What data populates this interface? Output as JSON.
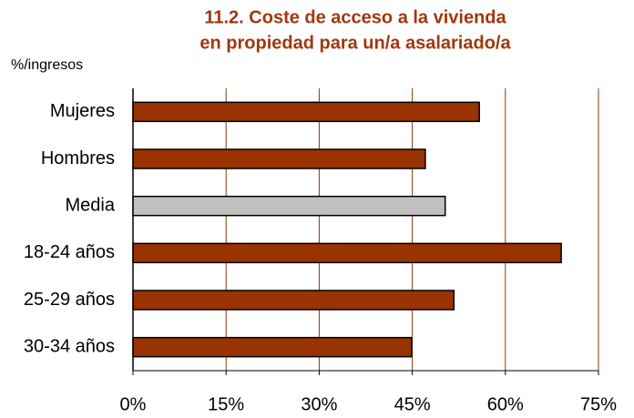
{
  "chart_data": {
    "type": "hbar",
    "title": [
      "11.2. Coste de acceso a la vivienda",
      "en propiedad para un/a asalariado/a"
    ],
    "y_label": "%/ingresos",
    "categories": [
      "Mujeres",
      "Hombres",
      "Media",
      "18-24 años",
      "25-29 años",
      "30-34 años"
    ],
    "values": [
      55.8,
      47.1,
      50.3,
      69.0,
      51.7,
      44.9
    ],
    "colors": [
      "#993300",
      "#993300",
      "#c0c0c0",
      "#993300",
      "#993300",
      "#993300"
    ],
    "xlim": [
      0,
      75
    ],
    "xticks": [
      {
        "value": 0,
        "label": "0%"
      },
      {
        "value": 15,
        "label": "15%"
      },
      {
        "value": 30,
        "label": "30%"
      },
      {
        "value": 45,
        "label": "45%"
      },
      {
        "value": 60,
        "label": "60%"
      },
      {
        "value": 75,
        "label": "75%"
      }
    ],
    "grid": true,
    "grid_color": "#993300"
  }
}
